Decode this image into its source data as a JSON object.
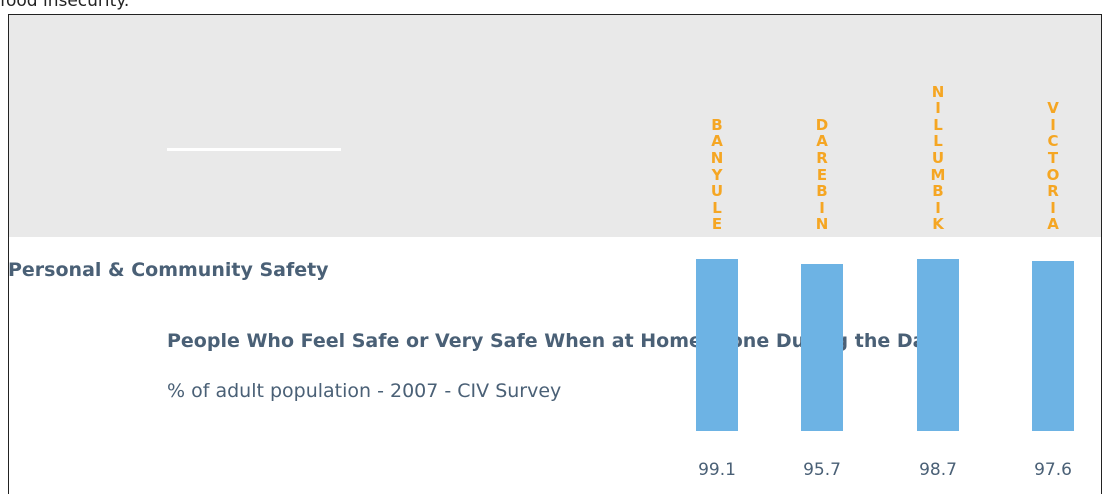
{
  "top_text": "food insecurity.",
  "chart_data": {
    "type": "bar",
    "categories": [
      "BANYULE",
      "DAREBIN",
      "NILLUMBIK",
      "VICTORIA"
    ],
    "values": [
      99.1,
      95.7,
      98.7,
      97.6
    ],
    "category_label": "Personal & Community Safety",
    "title": "People Who Feel Safe or Very Safe When at Home Alone During the Day",
    "subtitle": "% of adult population - 2007 - CIV Survey",
    "colors": {
      "bar": "#6db3e4",
      "header_label": "#f5a623",
      "text": "#4a6076",
      "band": "#e9e9e9"
    },
    "ylim": [
      0,
      100
    ]
  }
}
